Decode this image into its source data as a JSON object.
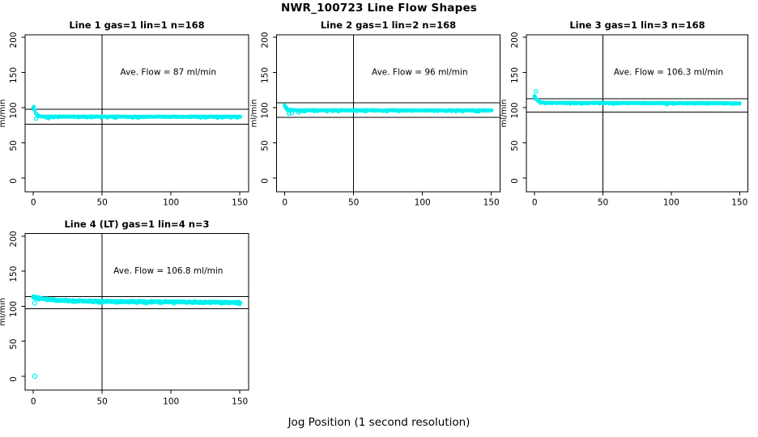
{
  "figure": {
    "title": "NWR_100723  Line Flow Shapes",
    "xlabel": "Jog Position (1 second resolution)",
    "background": "#ffffff",
    "axis_color": "#000000",
    "point_color": "#00f0f0"
  },
  "chart_data": [
    {
      "type": "scatter",
      "title": "Line 1 gas=1 lin=1 n=168",
      "ylabel": "ml/min",
      "annotation": "Ave. Flow =  87  ml/min",
      "ave_flow": 87,
      "n": 168,
      "xlim": [
        0,
        150
      ],
      "ylim": [
        0,
        200
      ],
      "xticks": [
        0,
        50,
        100,
        150
      ],
      "yticks": [
        0,
        50,
        100,
        150,
        200
      ],
      "vline_x": 50,
      "hlines": [
        97.5,
        76.5
      ],
      "profile": [
        [
          0,
          101
        ],
        [
          1,
          96.5
        ],
        [
          2,
          91.5
        ],
        [
          3,
          89
        ],
        [
          5,
          87.5
        ],
        [
          10,
          87.2
        ],
        [
          150,
          87
        ]
      ],
      "outliers": [
        [
          2,
          84.5
        ],
        [
          11,
          85
        ]
      ],
      "jitter": 0.9,
      "layers": 5,
      "point_radius": 1.5
    },
    {
      "type": "scatter",
      "title": "Line 2 gas=1 lin=2 n=168",
      "ylabel": "ml/min",
      "annotation": "Ave. Flow =  96  ml/min",
      "ave_flow": 96,
      "n": 168,
      "xlim": [
        0,
        150
      ],
      "ylim": [
        0,
        200
      ],
      "xticks": [
        0,
        50,
        100,
        150
      ],
      "yticks": [
        0,
        50,
        100,
        150,
        200
      ],
      "vline_x": 50,
      "hlines": [
        107,
        86
      ],
      "profile": [
        [
          0,
          103
        ],
        [
          1,
          99.5
        ],
        [
          2,
          97.5
        ],
        [
          4,
          96.5
        ],
        [
          10,
          96.2
        ],
        [
          150,
          96
        ]
      ],
      "outliers": [
        [
          3,
          91.5
        ],
        [
          5,
          92
        ],
        [
          10,
          93
        ]
      ],
      "jitter": 1.0,
      "layers": 5,
      "point_radius": 1.5
    },
    {
      "type": "scatter",
      "title": "Line 3 gas=1 lin=3 n=168",
      "ylabel": "ml/min",
      "annotation": "Ave. Flow =  106.3  ml/min",
      "ave_flow": 106.3,
      "n": 168,
      "xlim": [
        0,
        150
      ],
      "ylim": [
        0,
        200
      ],
      "xticks": [
        0,
        50,
        100,
        150
      ],
      "yticks": [
        0,
        50,
        100,
        150,
        200
      ],
      "vline_x": 50,
      "hlines": [
        112.5,
        93.5
      ],
      "profile": [
        [
          0,
          116
        ],
        [
          1,
          113
        ],
        [
          2,
          110
        ],
        [
          4,
          107.5
        ],
        [
          8,
          106.8
        ],
        [
          150,
          106.2
        ]
      ],
      "outliers": [
        [
          1,
          123
        ]
      ],
      "jitter": 0.9,
      "layers": 5,
      "point_radius": 1.5
    },
    {
      "type": "scatter",
      "title": "Line 4 (LT) gas=1 lin=4 n=3",
      "ylabel": "ml/min",
      "annotation": "Ave. Flow =  106.8  ml/min",
      "ave_flow": 106.8,
      "n": 3,
      "xlim": [
        0,
        150
      ],
      "ylim": [
        0,
        200
      ],
      "xticks": [
        0,
        50,
        100,
        150
      ],
      "yticks": [
        0,
        50,
        100,
        150,
        200
      ],
      "vline_x": 50,
      "hlines": [
        114,
        96.5
      ],
      "profile": [
        [
          0,
          113
        ],
        [
          3,
          111.5
        ],
        [
          8,
          110.5
        ],
        [
          15,
          109
        ],
        [
          30,
          107.5
        ],
        [
          60,
          106.6
        ],
        [
          100,
          106.2
        ],
        [
          150,
          105.2
        ]
      ],
      "outliers": [
        [
          1,
          0
        ],
        [
          1,
          104.5
        ]
      ],
      "jitter": 1.3,
      "layers": 3,
      "point_radius": 2.0
    }
  ]
}
